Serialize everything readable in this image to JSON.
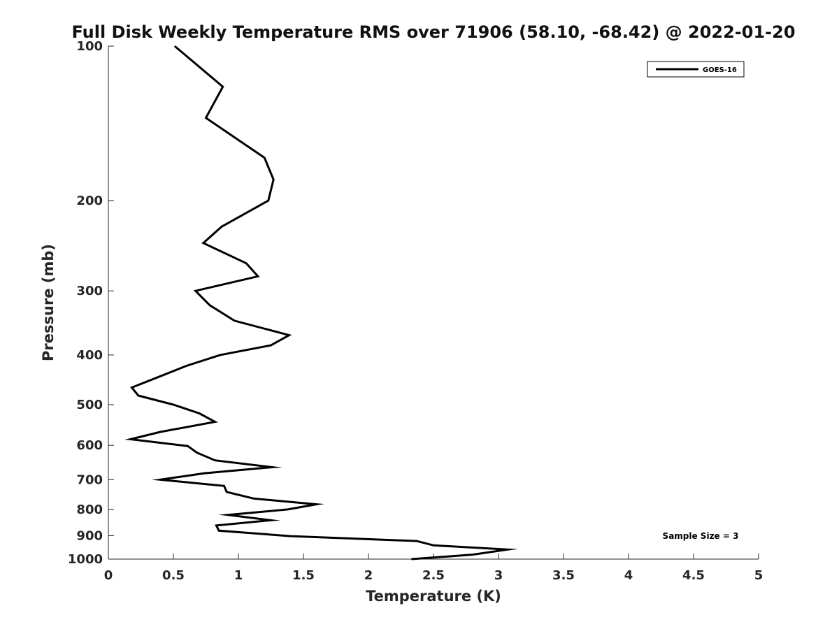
{
  "chart_data": {
    "type": "line",
    "title": "Full Disk Weekly Temperature RMS over 71906 (58.10, -68.42) @ 2022-01-20",
    "xlabel": "Temperature (K)",
    "ylabel": "Pressure (mb)",
    "xlim": [
      0,
      5
    ],
    "ylim": [
      100,
      1000
    ],
    "y_scale": "log",
    "y_reversed": true,
    "x_ticks": [
      0,
      0.5,
      1,
      1.5,
      2,
      2.5,
      3,
      3.5,
      4,
      4.5,
      5
    ],
    "x_tick_labels": [
      "0",
      "0.5",
      "1",
      "1.5",
      "2",
      "2.5",
      "3",
      "3.5",
      "4",
      "4.5",
      "5"
    ],
    "y_ticks": [
      100,
      200,
      300,
      400,
      500,
      600,
      700,
      800,
      900,
      1000
    ],
    "y_tick_labels": [
      "100",
      "200",
      "300",
      "400",
      "500",
      "600",
      "700",
      "800",
      "900",
      "1000"
    ],
    "grid": false,
    "legend_position": "top-right",
    "annotation": "Sample Size = 3",
    "series": [
      {
        "name": "GOES-16",
        "color": "#000000",
        "x": [
          0.51,
          0.88,
          0.75,
          1.2,
          1.27,
          1.23,
          0.87,
          0.73,
          1.06,
          1.15,
          0.67,
          0.78,
          0.97,
          1.39,
          1.25,
          0.86,
          0.6,
          0.4,
          0.18,
          0.23,
          0.5,
          0.7,
          0.82,
          0.4,
          0.17,
          0.61,
          0.68,
          0.82,
          1.26,
          0.74,
          0.4,
          0.89,
          0.91,
          1.12,
          1.6,
          1.38,
          0.92,
          1.25,
          0.83,
          0.85,
          1.4,
          2.37,
          2.5,
          3.07,
          2.8,
          2.33
        ],
        "y": [
          100,
          120,
          138,
          165,
          182,
          200,
          225,
          242,
          265,
          281,
          300,
          320,
          343,
          366,
          383,
          400,
          420,
          440,
          463,
          480,
          500,
          520,
          540,
          565,
          584,
          602,
          620,
          642,
          662,
          680,
          700,
          720,
          740,
          762,
          782,
          800,
          820,
          840,
          860,
          880,
          902,
          922,
          940,
          958,
          980,
          1000
        ]
      }
    ]
  }
}
